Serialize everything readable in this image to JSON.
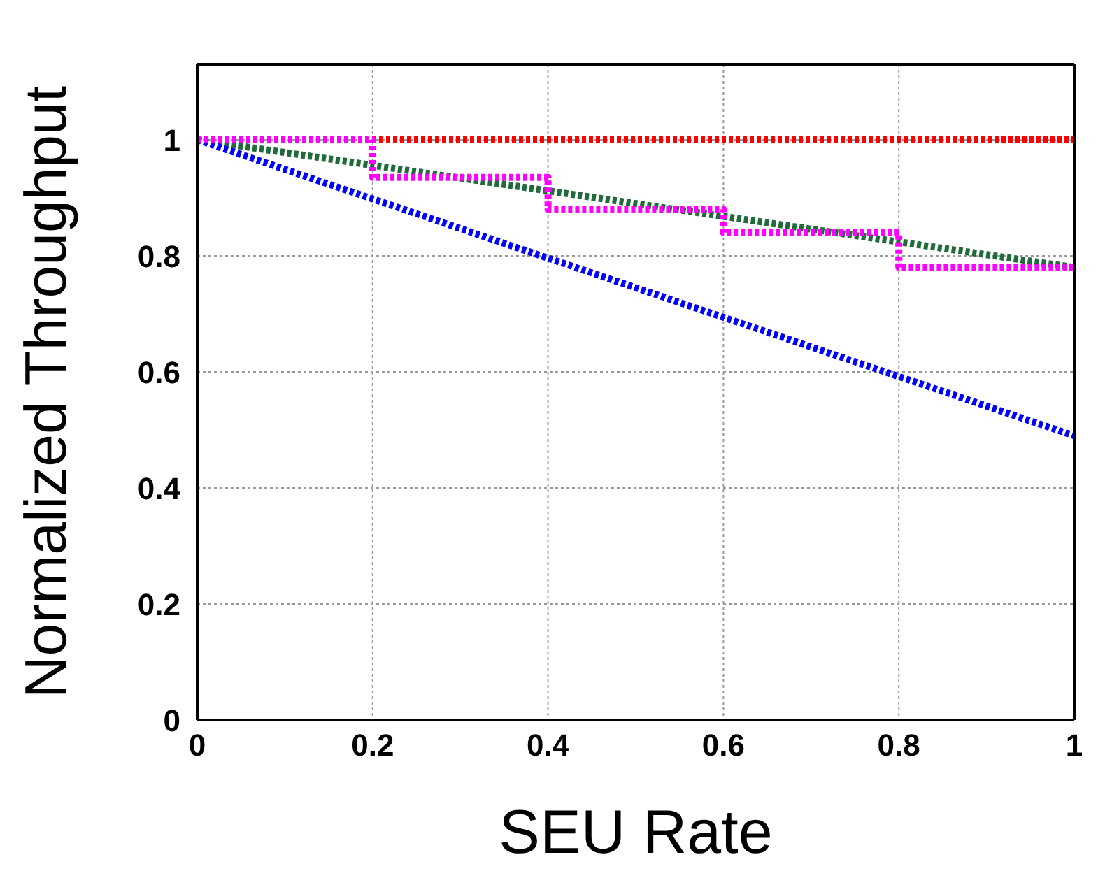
{
  "chart_data": {
    "type": "line",
    "xlabel": "SEU Rate",
    "ylabel": "Normalized Throughput",
    "xlim": [
      0,
      1
    ],
    "xticks": [
      0,
      0.2,
      0.4,
      0.6,
      0.8,
      1
    ],
    "ylim": [
      0,
      1.13
    ],
    "yticks": [
      0,
      0.2,
      0.4,
      0.6,
      0.8,
      1
    ],
    "grid": true,
    "legend": false,
    "line_style": "dotted",
    "marker": "none",
    "series": [
      {
        "color": "#ff0000",
        "x": [
          0,
          1
        ],
        "values": [
          1,
          1
        ]
      },
      {
        "color": "#1f6b3a",
        "x": [
          0,
          1
        ],
        "values": [
          1,
          0.78
        ]
      },
      {
        "color": "#0000ff",
        "x": [
          0,
          1
        ],
        "values": [
          1,
          0.49
        ]
      },
      {
        "type": "step",
        "color": "#ff00ff",
        "x": [
          0,
          0.2,
          0.4,
          0.6,
          0.8,
          1
        ],
        "values": [
          1,
          0.935,
          0.88,
          0.84,
          0.78,
          0.78
        ]
      }
    ]
  }
}
